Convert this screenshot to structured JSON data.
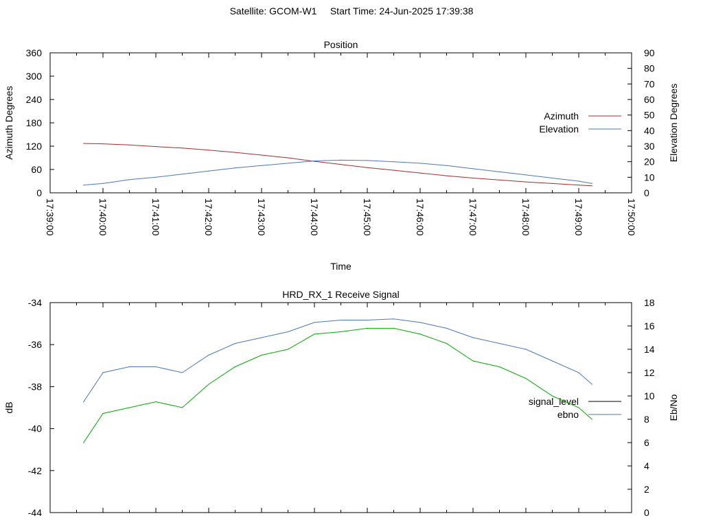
{
  "header": {
    "satellite": "Satellite: GCOM-W1",
    "start_time": "Start Time: 24-Jun-2025 17:39:38"
  },
  "chart_data": [
    {
      "type": "line",
      "title": "Position",
      "xlabel": "Time",
      "ylabel": "Azimuth Degrees",
      "y2label": "Elevation Degrees",
      "xlim": [
        "17:39:00",
        "17:50:00"
      ],
      "x_ticks": [
        "17:39:00",
        "17:40:00",
        "17:41:00",
        "17:42:00",
        "17:43:00",
        "17:44:00",
        "17:45:00",
        "17:46:00",
        "17:47:00",
        "17:48:00",
        "17:49:00",
        "17:50:00"
      ],
      "ylim": [
        0,
        360
      ],
      "y_ticks": [
        0,
        60,
        120,
        180,
        240,
        300,
        360
      ],
      "y2lim": [
        0,
        90
      ],
      "y2_ticks": [
        0,
        10,
        20,
        30,
        40,
        50,
        60,
        70,
        80,
        90
      ],
      "legend_position": "right",
      "series": [
        {
          "name": "Azimuth",
          "axis": "y",
          "color": "#a52a2a",
          "x": [
            "17:39:38",
            "17:40:00",
            "17:40:30",
            "17:41:00",
            "17:41:30",
            "17:42:00",
            "17:42:30",
            "17:43:00",
            "17:43:30",
            "17:44:00",
            "17:44:30",
            "17:45:00",
            "17:45:30",
            "17:46:00",
            "17:46:30",
            "17:47:00",
            "17:47:30",
            "17:48:00",
            "17:48:30",
            "17:49:00",
            "17:49:15"
          ],
          "values": [
            127,
            126,
            123,
            119,
            115,
            110,
            104,
            97,
            90,
            81,
            73,
            65,
            58,
            51,
            44,
            38,
            33,
            28,
            24,
            20,
            18
          ]
        },
        {
          "name": "Elevation",
          "axis": "y2",
          "color": "#4a77b4",
          "x": [
            "17:39:38",
            "17:40:00",
            "17:40:30",
            "17:41:00",
            "17:41:30",
            "17:42:00",
            "17:42:30",
            "17:43:00",
            "17:43:30",
            "17:44:00",
            "17:44:30",
            "17:45:00",
            "17:45:30",
            "17:46:00",
            "17:46:30",
            "17:47:00",
            "17:47:30",
            "17:48:00",
            "17:48:30",
            "17:49:00",
            "17:49:15"
          ],
          "values": [
            5,
            6,
            8.5,
            10,
            12,
            14,
            16,
            17.5,
            19,
            20.5,
            21,
            20.8,
            20,
            19,
            17.5,
            15.5,
            13.5,
            11.5,
            9.5,
            7.5,
            6
          ]
        }
      ]
    },
    {
      "type": "line",
      "title": "HRD_RX_1 Receive Signal",
      "ylabel": "dB",
      "y2label": "Eb/No",
      "xlim": [
        "17:39:00",
        "17:50:00"
      ],
      "ylim": [
        -44,
        -34
      ],
      "y_ticks": [
        -44,
        -42,
        -40,
        -38,
        -36,
        -34
      ],
      "y2lim": [
        0,
        18
      ],
      "y2_ticks": [
        0,
        2,
        4,
        6,
        8,
        10,
        12,
        14,
        16,
        18
      ],
      "legend_position": "right",
      "series": [
        {
          "name": "signal_level",
          "axis": "y",
          "color": "#000000",
          "x": [],
          "values": []
        },
        {
          "name": "ebno",
          "axis": "y2",
          "color": "#4a77b4",
          "x": [
            "17:39:38",
            "17:40:00",
            "17:40:30",
            "17:41:00",
            "17:41:30",
            "17:42:00",
            "17:42:30",
            "17:43:00",
            "17:43:30",
            "17:44:00",
            "17:44:30",
            "17:45:00",
            "17:45:30",
            "17:46:00",
            "17:46:30",
            "17:47:00",
            "17:47:30",
            "17:48:00",
            "17:48:30",
            "17:49:00",
            "17:49:15"
          ],
          "values": [
            9.5,
            12,
            12.5,
            12.5,
            12,
            13.5,
            14.5,
            15,
            15.5,
            16.3,
            16.5,
            16.5,
            16.6,
            16.3,
            15.8,
            15,
            14.5,
            14,
            13,
            12,
            11
          ]
        },
        {
          "name": "",
          "axis": "y2",
          "color": "#00aa00",
          "x": [
            "17:39:38",
            "17:40:00",
            "17:40:30",
            "17:41:00",
            "17:41:30",
            "17:42:00",
            "17:42:30",
            "17:43:00",
            "17:43:30",
            "17:44:00",
            "17:44:30",
            "17:45:00",
            "17:45:30",
            "17:46:00",
            "17:46:30",
            "17:47:00",
            "17:47:30",
            "17:48:00",
            "17:48:30",
            "17:49:00",
            "17:49:15"
          ],
          "values": [
            6,
            8.5,
            9,
            9.5,
            9,
            11,
            12.5,
            13.5,
            14,
            15.3,
            15.5,
            15.8,
            15.8,
            15.3,
            14.5,
            13,
            12.5,
            11.5,
            10,
            9,
            8
          ]
        }
      ]
    }
  ]
}
